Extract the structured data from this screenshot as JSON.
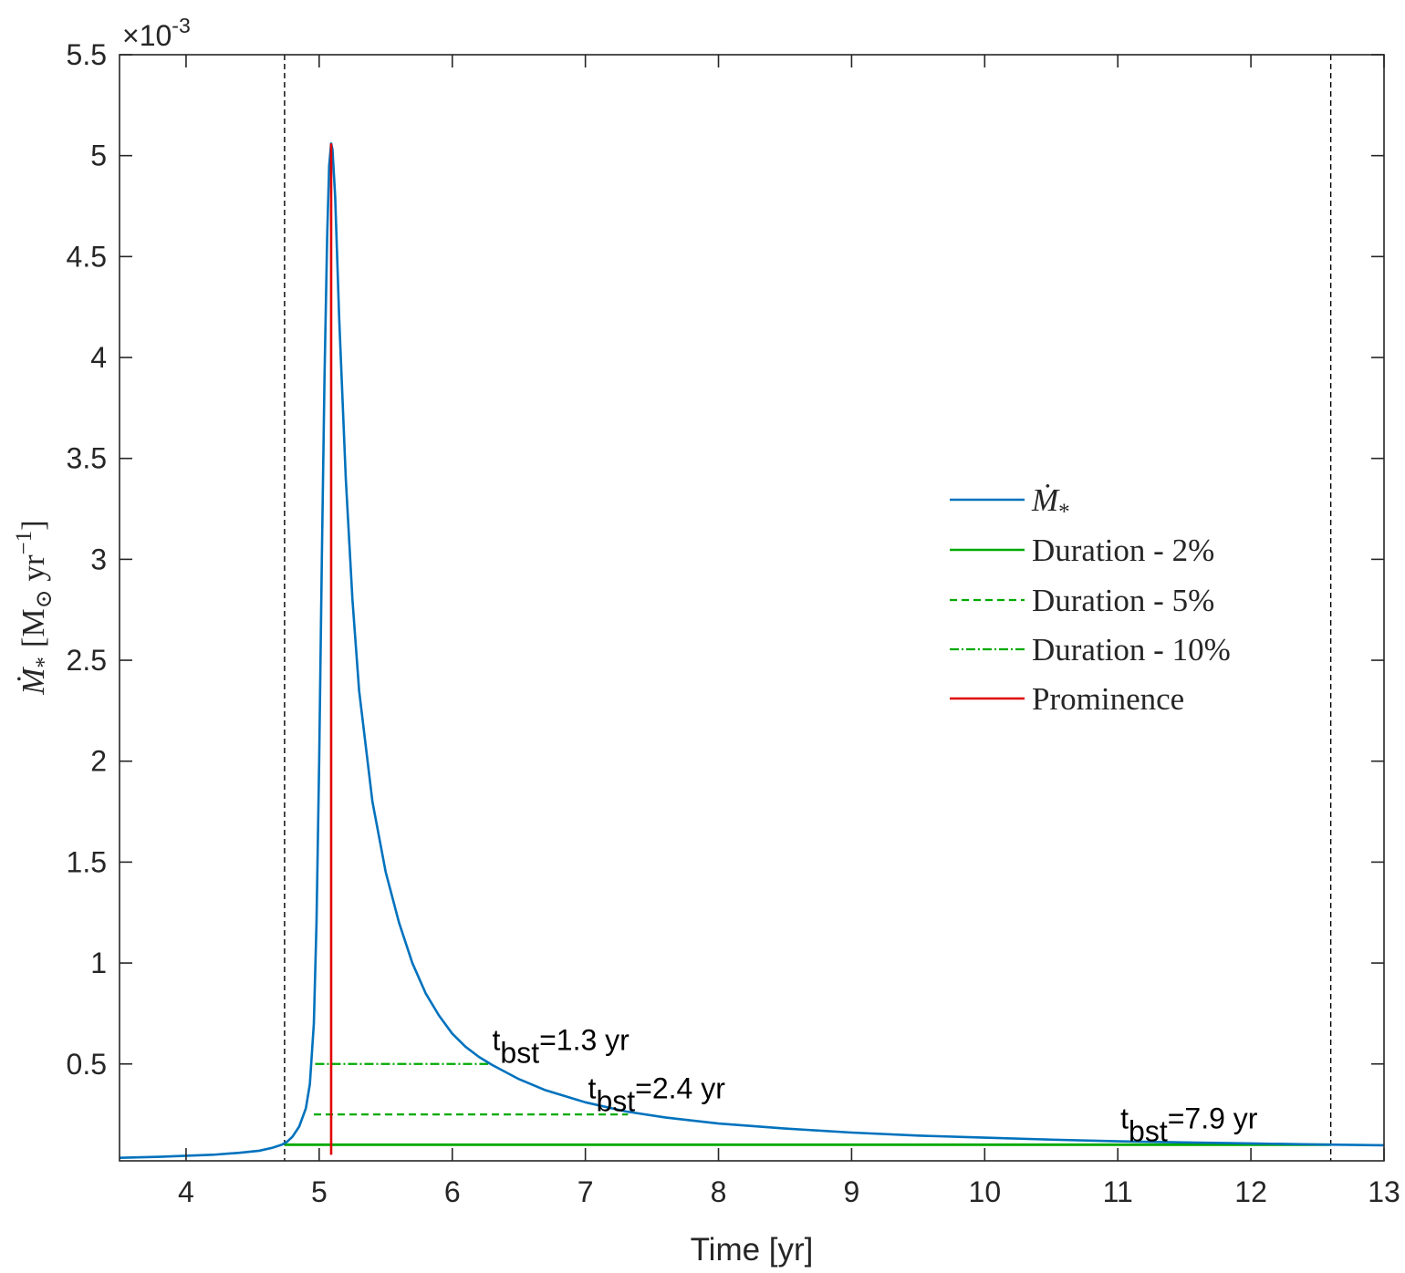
{
  "chart_data": {
    "type": "line",
    "xlabel": "Time [yr]",
    "ylabel": {
      "symbol": "Ṁ",
      "subscript": "*",
      "unit_open": "[M",
      "unit_sub": "⊙",
      "unit_mid": " yr",
      "unit_sup": "−1",
      "unit_close": "]"
    },
    "y_multiplier": {
      "base": "×10",
      "exponent": "-3"
    },
    "xlim": [
      3.5,
      13
    ],
    "ylim": [
      0.02,
      5.5
    ],
    "x_ticks": [
      4,
      5,
      6,
      7,
      8,
      9,
      10,
      11,
      12,
      13
    ],
    "x_tick_labels": [
      "4",
      "5",
      "6",
      "7",
      "8",
      "9",
      "10",
      "11",
      "12",
      "13"
    ],
    "y_ticks": [
      0.5,
      1,
      1.5,
      2,
      2.5,
      3,
      3.5,
      4,
      4.5,
      5,
      5.5
    ],
    "y_tick_labels": [
      "0.5",
      "1",
      "1.5",
      "2",
      "2.5",
      "3",
      "3.5",
      "4",
      "4.5",
      "5",
      "5.5"
    ],
    "grid": false,
    "legend_position": "center-right",
    "colors": {
      "accretion": "#0072bd",
      "duration": "#00aa00",
      "prominence": "#e00000",
      "boundary": "#000000"
    },
    "legend": [
      {
        "key": "mdot",
        "symbol": "Ṁ",
        "subscript": "*",
        "style": "solid",
        "color": "#0072bd"
      },
      {
        "key": "dur2",
        "label": "Duration - 2%",
        "style": "solid",
        "color": "#00aa00"
      },
      {
        "key": "dur5",
        "label": "Duration - 5%",
        "style": "dashed",
        "color": "#00aa00"
      },
      {
        "key": "dur10",
        "label": "Duration - 10%",
        "style": "dashdot",
        "color": "#00aa00"
      },
      {
        "key": "prom",
        "label": "Prominence",
        "style": "solid",
        "color": "#e00000"
      }
    ],
    "series": [
      {
        "name": "Ṁ*",
        "x": [
          3.5,
          3.8,
          4.0,
          4.2,
          4.4,
          4.55,
          4.65,
          4.72,
          4.76,
          4.8,
          4.85,
          4.9,
          4.93,
          4.96,
          4.98,
          5.0,
          5.02,
          5.04,
          5.06,
          5.075,
          5.09,
          5.1,
          5.12,
          5.15,
          5.2,
          5.25,
          5.3,
          5.4,
          5.5,
          5.6,
          5.7,
          5.8,
          5.9,
          6.0,
          6.1,
          6.2,
          6.3,
          6.5,
          6.7,
          7.0,
          7.3,
          7.6,
          8.0,
          8.5,
          9.0,
          9.5,
          10.0,
          10.5,
          11.0,
          11.5,
          12.0,
          12.5,
          13.0
        ],
        "y": [
          0.035,
          0.04,
          0.045,
          0.05,
          0.06,
          0.07,
          0.085,
          0.1,
          0.115,
          0.14,
          0.19,
          0.28,
          0.4,
          0.7,
          1.2,
          2.0,
          3.0,
          3.9,
          4.6,
          4.95,
          5.06,
          5.03,
          4.8,
          4.2,
          3.4,
          2.8,
          2.35,
          1.8,
          1.45,
          1.2,
          1.0,
          0.85,
          0.74,
          0.65,
          0.585,
          0.535,
          0.495,
          0.425,
          0.37,
          0.31,
          0.265,
          0.235,
          0.205,
          0.18,
          0.16,
          0.145,
          0.135,
          0.125,
          0.117,
          0.111,
          0.106,
          0.101,
          0.097
        ]
      },
      {
        "name": "Duration - 2%",
        "x": [
          4.74,
          12.6
        ],
        "y": [
          0.1,
          0.1
        ]
      },
      {
        "name": "Duration - 5%",
        "x": [
          4.96,
          7.32
        ],
        "y": [
          0.25,
          0.25
        ]
      },
      {
        "name": "Duration - 10%",
        "x": [
          4.97,
          6.27
        ],
        "y": [
          0.5,
          0.5
        ]
      },
      {
        "name": "Prominence",
        "x": [
          5.09,
          5.09
        ],
        "y": [
          0.05,
          5.06
        ]
      }
    ],
    "boundaries_x": [
      4.74,
      12.6
    ],
    "annotations": [
      {
        "key": "bst10",
        "base": "t",
        "sub": "bst",
        "text": "=1.3 yr",
        "x": 6.3,
        "y": 0.57
      },
      {
        "key": "bst5",
        "base": "t",
        "sub": "bst",
        "text": "=2.4 yr",
        "x": 7.02,
        "y": 0.33
      },
      {
        "key": "bst2",
        "base": "t",
        "sub": "bst",
        "text": "=7.9 yr",
        "x": 11.02,
        "y": 0.18
      }
    ]
  }
}
